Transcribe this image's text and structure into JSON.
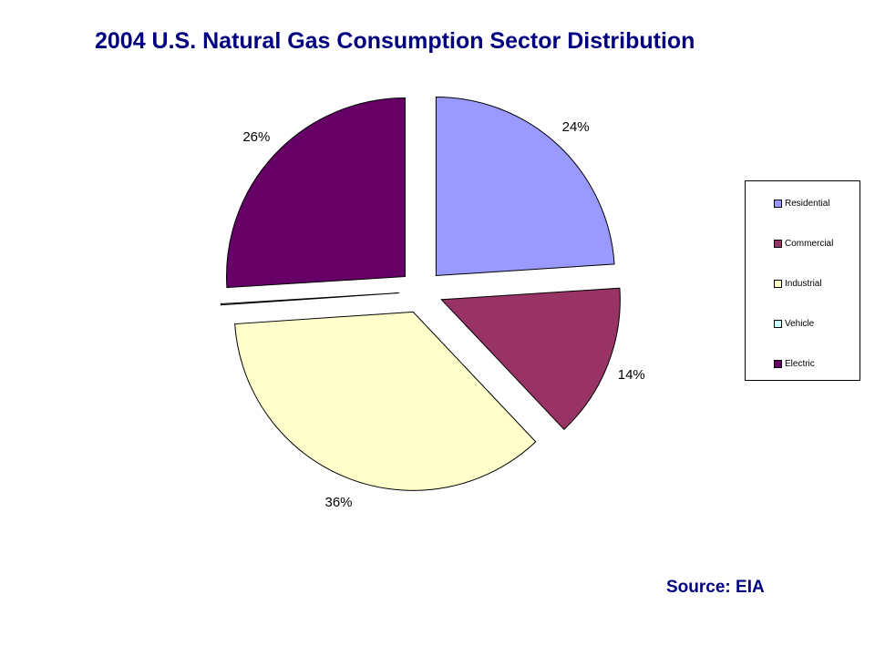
{
  "chart_data": {
    "type": "pie",
    "title": "2004 U.S. Natural Gas Consumption Sector Distribution",
    "categories": [
      "Residential",
      "Commercial",
      "Industrial",
      "Vehicle",
      "Electric"
    ],
    "values": [
      24,
      14,
      36,
      0.1,
      26
    ],
    "data_labels": [
      "24%",
      "14%",
      "36%",
      "",
      "26%"
    ],
    "colors": [
      "#9999ff",
      "#993366",
      "#ffffcc",
      "#ccffff",
      "#660066"
    ],
    "legend": {
      "placement": "right",
      "entries": [
        "Residential",
        "Commercial",
        "Industrial",
        "Vehicle",
        "Electric"
      ]
    },
    "exploded": true
  },
  "footer": {
    "source": "Source: EIA"
  }
}
